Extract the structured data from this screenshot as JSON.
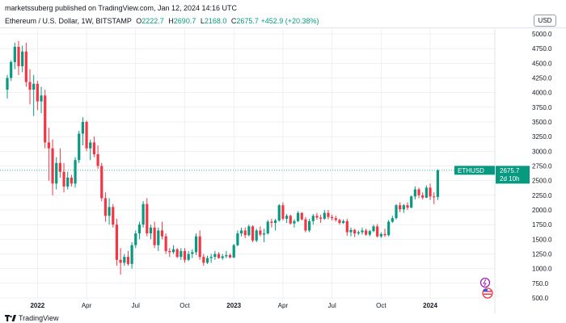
{
  "header": {
    "published": "marketssuberg published on TradingView.com, Jan 12, 2024 14:16 UTC",
    "symbol": "Ethereum / U.S. Dollar, 1W, BITSTAMP",
    "open_label": "O",
    "open": "2222.7",
    "high_label": "H",
    "high": "2690.7",
    "low_label": "L",
    "low": "2168.0",
    "close_label": "C",
    "close": "2675.7",
    "change": "+452.9 (+20.38%)",
    "currency": "USD"
  },
  "price_tag": {
    "symbol": "ETHUSD",
    "price": "2675.7",
    "countdown": "2d 10h"
  },
  "footer": {
    "brand": "TradingView"
  },
  "colors": {
    "up": "#089981",
    "down": "#f23645",
    "grid": "#e0e3eb",
    "price_line": "#089981"
  },
  "chart_data": {
    "type": "candlestick",
    "ylim": [
      500,
      5000
    ],
    "y_ticks": [
      5000,
      4750,
      4500,
      4250,
      4000,
      3750,
      3500,
      3250,
      3000,
      2750,
      2500,
      2250,
      2000,
      1750,
      1500,
      1250,
      1000,
      750,
      500
    ],
    "y_tick_labels": [
      "5000.0",
      "4750.0",
      "4500.0",
      "4250.0",
      "4000.0",
      "3750.0",
      "3500.0",
      "3250.0",
      "3000.0",
      "2750.0",
      "2500.0",
      "2250.0",
      "2000.0",
      "1750.0",
      "1500.0",
      "1250.0",
      "1000.0",
      "750.0",
      "500.0"
    ],
    "x_ticks": [
      {
        "index": 8,
        "label": "2022",
        "bold": true
      },
      {
        "index": 21,
        "label": "Apr",
        "bold": false
      },
      {
        "index": 34,
        "label": "Jul",
        "bold": false
      },
      {
        "index": 47,
        "label": "Oct",
        "bold": false
      },
      {
        "index": 60,
        "label": "2023",
        "bold": true
      },
      {
        "index": 73,
        "label": "Apr",
        "bold": false
      },
      {
        "index": 86,
        "label": "Jul",
        "bold": false
      },
      {
        "index": 99,
        "label": "Oct",
        "bold": false
      },
      {
        "index": 112,
        "label": "2024",
        "bold": true
      }
    ],
    "candles": [
      [
        4050,
        4300,
        3900,
        4250
      ],
      [
        4250,
        4550,
        4200,
        4520
      ],
      [
        4520,
        4850,
        4400,
        4780
      ],
      [
        4780,
        4880,
        4300,
        4450
      ],
      [
        4450,
        4800,
        4350,
        4700
      ],
      [
        4700,
        4850,
        4100,
        4180
      ],
      [
        4180,
        4400,
        3800,
        4050
      ],
      [
        4050,
        4300,
        3600,
        4150
      ],
      [
        4150,
        4200,
        3700,
        3850
      ],
      [
        3850,
        4100,
        3650,
        3950
      ],
      [
        3950,
        4050,
        3050,
        3150
      ],
      [
        3150,
        3400,
        2500,
        3050
      ],
      [
        3050,
        3200,
        2250,
        2450
      ],
      [
        2450,
        2900,
        2350,
        2800
      ],
      [
        2800,
        3050,
        2550,
        2650
      ],
      [
        2650,
        2800,
        2300,
        2400
      ],
      [
        2400,
        2650,
        2350,
        2550
      ],
      [
        2550,
        2600,
        2400,
        2450
      ],
      [
        2450,
        2900,
        2380,
        2850
      ],
      [
        2850,
        3350,
        2800,
        3300
      ],
      [
        3300,
        3580,
        3100,
        3500
      ],
      [
        3500,
        3520,
        3000,
        3050
      ],
      [
        3050,
        3200,
        2850,
        3150
      ],
      [
        3150,
        3250,
        2900,
        2950
      ],
      [
        2950,
        3100,
        2700,
        2750
      ],
      [
        2750,
        2800,
        2150,
        2200
      ],
      [
        2200,
        2300,
        1800,
        1900
      ],
      [
        1900,
        2200,
        1750,
        2050
      ],
      [
        2050,
        2100,
        1700,
        1750
      ],
      [
        1750,
        1850,
        1050,
        1150
      ],
      [
        1150,
        1350,
        900,
        1100
      ],
      [
        1100,
        1250,
        1050,
        1200
      ],
      [
        1200,
        1300,
        1050,
        1080
      ],
      [
        1080,
        1450,
        1000,
        1400
      ],
      [
        1400,
        1650,
        1350,
        1600
      ],
      [
        1600,
        1800,
        1500,
        1750
      ],
      [
        1750,
        2150,
        1700,
        2100
      ],
      [
        2100,
        2200,
        1550,
        1600
      ],
      [
        1600,
        1750,
        1500,
        1700
      ],
      [
        1700,
        1800,
        1350,
        1400
      ],
      [
        1400,
        1700,
        1300,
        1650
      ],
      [
        1650,
        1800,
        1500,
        1550
      ],
      [
        1550,
        1600,
        1250,
        1300
      ],
      [
        1300,
        1350,
        1200,
        1280
      ],
      [
        1280,
        1400,
        1250,
        1330
      ],
      [
        1330,
        1350,
        1180,
        1200
      ],
      [
        1200,
        1350,
        1150,
        1300
      ],
      [
        1300,
        1350,
        1100,
        1150
      ],
      [
        1150,
        1300,
        1130,
        1250
      ],
      [
        1250,
        1330,
        1180,
        1280
      ],
      [
        1280,
        1600,
        1230,
        1550
      ],
      [
        1550,
        1650,
        1150,
        1200
      ],
      [
        1200,
        1250,
        1050,
        1100
      ],
      [
        1100,
        1220,
        1080,
        1180
      ],
      [
        1180,
        1250,
        1100,
        1200
      ],
      [
        1200,
        1300,
        1150,
        1250
      ],
      [
        1250,
        1280,
        1170,
        1180
      ],
      [
        1180,
        1250,
        1150,
        1210
      ],
      [
        1210,
        1300,
        1180,
        1230
      ],
      [
        1230,
        1260,
        1180,
        1190
      ],
      [
        1190,
        1420,
        1180,
        1400
      ],
      [
        1400,
        1650,
        1380,
        1600
      ],
      [
        1600,
        1700,
        1550,
        1650
      ],
      [
        1650,
        1700,
        1520,
        1570
      ],
      [
        1570,
        1750,
        1550,
        1720
      ],
      [
        1720,
        1740,
        1450,
        1480
      ],
      [
        1480,
        1680,
        1450,
        1650
      ],
      [
        1650,
        1720,
        1550,
        1580
      ],
      [
        1580,
        1680,
        1450,
        1600
      ],
      [
        1600,
        1830,
        1580,
        1800
      ],
      [
        1800,
        1850,
        1700,
        1780
      ],
      [
        1780,
        1850,
        1650,
        1820
      ],
      [
        1820,
        2100,
        1800,
        2080
      ],
      [
        2080,
        2130,
        1820,
        1850
      ],
      [
        1850,
        1930,
        1780,
        1900
      ],
      [
        1900,
        1920,
        1750,
        1770
      ],
      [
        1770,
        1840,
        1700,
        1810
      ],
      [
        1810,
        1980,
        1790,
        1950
      ],
      [
        1950,
        1960,
        1820,
        1840
      ],
      [
        1840,
        1880,
        1620,
        1650
      ],
      [
        1650,
        1850,
        1620,
        1810
      ],
      [
        1810,
        1930,
        1750,
        1900
      ],
      [
        1900,
        1950,
        1830,
        1870
      ],
      [
        1870,
        1920,
        1780,
        1850
      ],
      [
        1850,
        2000,
        1830,
        1950
      ],
      [
        1950,
        2000,
        1840,
        1880
      ],
      [
        1880,
        1920,
        1820,
        1860
      ],
      [
        1860,
        1900,
        1800,
        1830
      ],
      [
        1830,
        1850,
        1750,
        1780
      ],
      [
        1780,
        1840,
        1760,
        1810
      ],
      [
        1810,
        1850,
        1560,
        1620
      ],
      [
        1620,
        1700,
        1550,
        1660
      ],
      [
        1660,
        1680,
        1540,
        1600
      ],
      [
        1600,
        1650,
        1570,
        1620
      ],
      [
        1620,
        1700,
        1580,
        1650
      ],
      [
        1650,
        1680,
        1560,
        1580
      ],
      [
        1580,
        1660,
        1550,
        1640
      ],
      [
        1640,
        1750,
        1620,
        1720
      ],
      [
        1720,
        1760,
        1530,
        1550
      ],
      [
        1550,
        1620,
        1520,
        1590
      ],
      [
        1590,
        1680,
        1540,
        1570
      ],
      [
        1570,
        1830,
        1550,
        1800
      ],
      [
        1800,
        1900,
        1780,
        1860
      ],
      [
        1860,
        2100,
        1840,
        2080
      ],
      [
        2080,
        2130,
        1960,
        2010
      ],
      [
        2010,
        2100,
        1950,
        2080
      ],
      [
        2080,
        2130,
        2000,
        2040
      ],
      [
        2040,
        2250,
        2030,
        2230
      ],
      [
        2230,
        2400,
        2180,
        2350
      ],
      [
        2350,
        2380,
        2200,
        2250
      ],
      [
        2250,
        2300,
        2180,
        2210
      ],
      [
        2210,
        2420,
        2200,
        2380
      ],
      [
        2380,
        2450,
        2170,
        2230
      ],
      [
        2230,
        2300,
        2100,
        2220
      ],
      [
        2222.7,
        2690.7,
        2168.0,
        2675.7
      ]
    ]
  }
}
